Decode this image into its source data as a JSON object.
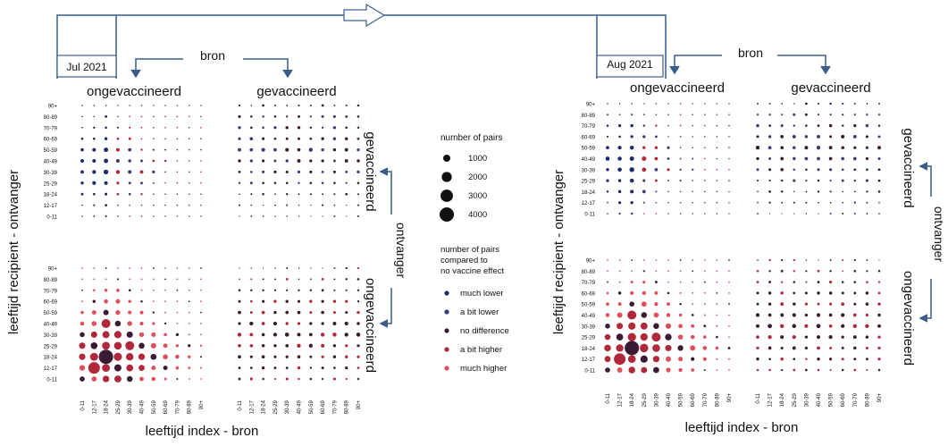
{
  "colors": {
    "much_lower": "#1e2a6e",
    "a_bit_lower": "#3a3a7a",
    "no_difference": "#3b1a33",
    "a_bit_higher": "#b0283a",
    "much_higher": "#e0505a",
    "frame": "#3a5d8c"
  },
  "tick_labels": [
    "0-11",
    "12-17",
    "18-24",
    "25-29",
    "30-39",
    "40-49",
    "50-59",
    "60-69",
    "70-79",
    "80-89",
    "90+"
  ],
  "panels": [
    {
      "month": "Jul 2021",
      "source_label": "bron",
      "col_header_left": "ongevaccineerd",
      "col_header_right": "gevaccineerd",
      "row_label_top": "gevaccineerd",
      "row_label_bottom": "ongevaccineerd",
      "recipient_label": "ontvanger",
      "y_axis_title": "leeftijd recipient - ontvanger",
      "x_axis_title": "leeftijd index - bron"
    },
    {
      "month": "Aug 2021",
      "source_label": "bron",
      "col_header_left": "ongevaccineerd",
      "col_header_right": "gevaccineerd",
      "row_label_top": "gevaccineerd",
      "row_label_bottom": "ongevaccineerd",
      "recipient_label": "ontvanger",
      "y_axis_title": "leeftijd recipient - ontvanger",
      "x_axis_title": "leeftijd index - bron"
    }
  ],
  "legend": {
    "size_title": "number of pairs",
    "sizes": [
      {
        "label": "1000",
        "value": 1000
      },
      {
        "label": "2000",
        "value": 2000
      },
      {
        "label": "3000",
        "value": 3000
      },
      {
        "label": "4000",
        "value": 4000
      }
    ],
    "color_title_lines": [
      "number of pairs",
      "compared to",
      "no vaccine effect"
    ],
    "colors": [
      {
        "label": "much lower",
        "key": "much_lower"
      },
      {
        "label": "a bit lower",
        "key": "a_bit_lower"
      },
      {
        "label": "no difference",
        "key": "no_difference"
      },
      {
        "label": "a bit higher",
        "key": "a_bit_higher"
      },
      {
        "label": "much higher",
        "key": "much_higher"
      }
    ]
  }
}
